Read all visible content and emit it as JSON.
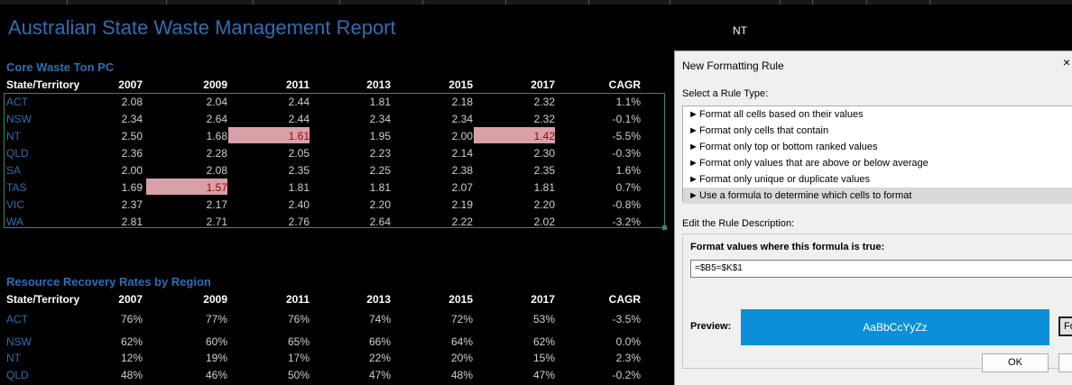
{
  "report": {
    "title": "Australian State Waste Management Report",
    "nt_label": "NT"
  },
  "columns": {
    "state": "State/Territory",
    "years": [
      "2007",
      "2009",
      "2011",
      "2013",
      "2015",
      "2017"
    ],
    "cagr": "CAGR"
  },
  "table1": {
    "title": "Core Waste Ton PC",
    "rows": [
      {
        "name": "ACT",
        "values": [
          "2.08",
          "2.04",
          "2.44",
          "1.81",
          "2.18",
          "2.32"
        ],
        "cagr": "1.1%"
      },
      {
        "name": "NSW",
        "values": [
          "2.34",
          "2.64",
          "2.44",
          "2.34",
          "2.34",
          "2.32"
        ],
        "cagr": "-0.1%"
      },
      {
        "name": "NT",
        "values": [
          "2.50",
          "1.68",
          "1.61",
          "1.95",
          "2.00",
          "1.42"
        ],
        "cagr": "-5.5%"
      },
      {
        "name": "QLD",
        "values": [
          "2.36",
          "2.28",
          "2.05",
          "2.23",
          "2.14",
          "2.30"
        ],
        "cagr": "-0.3%"
      },
      {
        "name": "SA",
        "values": [
          "2.00",
          "2.08",
          "2.35",
          "2.25",
          "2.38",
          "2.35"
        ],
        "cagr": "1.6%"
      },
      {
        "name": "TAS",
        "values": [
          "1.69",
          "1.57",
          "1.81",
          "1.81",
          "2.07",
          "1.81"
        ],
        "cagr": "0.7%"
      },
      {
        "name": "VIC",
        "values": [
          "2.37",
          "2.17",
          "2.40",
          "2.20",
          "2.19",
          "2.20"
        ],
        "cagr": "-0.8%"
      },
      {
        "name": "WA",
        "values": [
          "2.81",
          "2.71",
          "2.76",
          "2.64",
          "2.22",
          "2.02"
        ],
        "cagr": "-3.2%"
      }
    ],
    "highlighted_cells": [
      {
        "row": 2,
        "col": 2
      },
      {
        "row": 2,
        "col": 5
      },
      {
        "row": 5,
        "col": 1
      }
    ],
    "highlight_fill": "#d8a0a8",
    "highlight_text": "#9c0006"
  },
  "table2": {
    "title": "Resource Recovery Rates by Region",
    "rows": [
      {
        "name": "ACT",
        "values": [
          "76%",
          "77%",
          "76%",
          "74%",
          "72%",
          "53%"
        ],
        "cagr": "-3.5%"
      },
      {
        "name": "NSW",
        "values": [
          "62%",
          "60%",
          "65%",
          "66%",
          "64%",
          "62%"
        ],
        "cagr": "0.0%"
      },
      {
        "name": "NT",
        "values": [
          "12%",
          "19%",
          "17%",
          "22%",
          "20%",
          "15%"
        ],
        "cagr": "2.3%"
      },
      {
        "name": "QLD",
        "values": [
          "48%",
          "46%",
          "50%",
          "47%",
          "48%",
          "47%"
        ],
        "cagr": "-0.2%"
      }
    ]
  },
  "dialog": {
    "title": "New Formatting Rule",
    "close": "×",
    "select_label": "Select a Rule Type:",
    "rule_types": [
      "Format all cells based on their values",
      "Format only cells that contain",
      "Format only top or bottom ranked values",
      "Format only values that are above or below average",
      "Format only unique or duplicate values",
      "Use a formula to determine which cells to format"
    ],
    "selected_index": 5,
    "arrow": "►",
    "edit_label": "Edit the Rule Description:",
    "formula_label": "Format values where this formula is true:",
    "formula": "=$B5=$K$1",
    "preview_label": "Preview:",
    "preview_text": "AaBbCcYyZz",
    "preview_color": "#0b8fd8",
    "format_button": "Fo",
    "ok": "OK"
  }
}
